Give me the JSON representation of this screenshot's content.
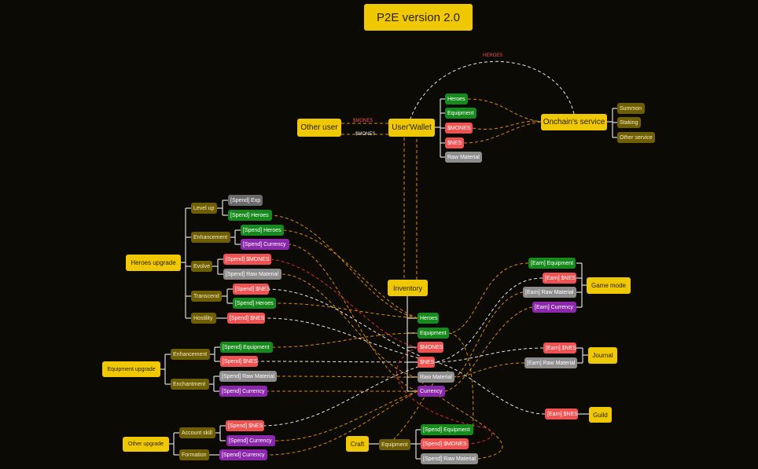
{
  "title": "P2E version 2.0",
  "colors": {
    "main_node": "#f0c800",
    "sub_node": "#6f5f00",
    "heroes_equipment": "#168a1c",
    "token": "#f05252",
    "currency": "#8c28ac",
    "raw_material": "#8d8d8d",
    "exp": "#6a6a6a",
    "flow_orange": "#d98a00",
    "flow_white": "#e8e8e8",
    "flow_red": "#d03030"
  },
  "top": {
    "other_user": "Other user",
    "wallet": "User'Wallet",
    "edge_send": "$MONES",
    "edge_receive": "$MONES",
    "edge_heroes": "HEROES",
    "wallet_items": [
      "Heroes",
      "Equipment",
      "$MONES",
      "$NES",
      "Raw Material"
    ],
    "onchain": "Onchain's service",
    "onchain_items": [
      "Summon",
      "Staking",
      "Other service"
    ]
  },
  "heroes_upgrade": {
    "label": "Heroes upgrade",
    "level_up": {
      "label": "Level up",
      "items": [
        "[Spend] Exp",
        "[Spend] Heroes"
      ]
    },
    "enhancement": {
      "label": "Enhancement",
      "items": [
        "[Spend] Heroes",
        "[Spend] Currency"
      ]
    },
    "evolve": {
      "label": "Evolve",
      "items": [
        "[Spend] $MONES",
        "[Spend] Raw Material"
      ]
    },
    "transcend": {
      "label": "Transcend",
      "items": [
        "[Spend] $NES",
        "[Spend] Heroes"
      ]
    },
    "hostility": {
      "label": "Hostility",
      "items": [
        "[Spend] $NES"
      ]
    }
  },
  "equipment_upgrade": {
    "label": "Equipment upgrade",
    "enhancement": {
      "label": "Enhancement",
      "items": [
        "[Spend] Equipment",
        "[Spend] $NES"
      ]
    },
    "enchantment": {
      "label": "Enchantment",
      "items": [
        "[Spend] Raw Material",
        "[Spend] Currency"
      ]
    }
  },
  "other_upgrade": {
    "label": "Other upgrade",
    "account_skill": {
      "label": "Account skill",
      "items": [
        "[Spend] $NES",
        "[Spend] Currency"
      ]
    },
    "formation": {
      "label": "Formation",
      "items": [
        "[Spend] Currency"
      ]
    }
  },
  "inventory": {
    "label": "Inventory",
    "items": [
      "Heroes",
      "Equipment",
      "$MONES",
      "$NES",
      "Raw Material",
      "Currency"
    ]
  },
  "game_mode": {
    "label": "Game mode",
    "items": [
      "[Earn] Equipment",
      "[Earn] $NES",
      "[Earn] Raw Material",
      "[Earn] Currency"
    ]
  },
  "journal": {
    "label": "Journal",
    "items": [
      "[Earn] $NES",
      "[Earn] Raw Material"
    ]
  },
  "guild": {
    "label": "Guild",
    "items": [
      "[Earn] $NES"
    ]
  },
  "craft": {
    "label": "Craft",
    "equipment": "Equipment",
    "items": [
      "[Spend] Equipment",
      "[Spend] $MONES",
      "[Spend] Raw Material"
    ]
  }
}
